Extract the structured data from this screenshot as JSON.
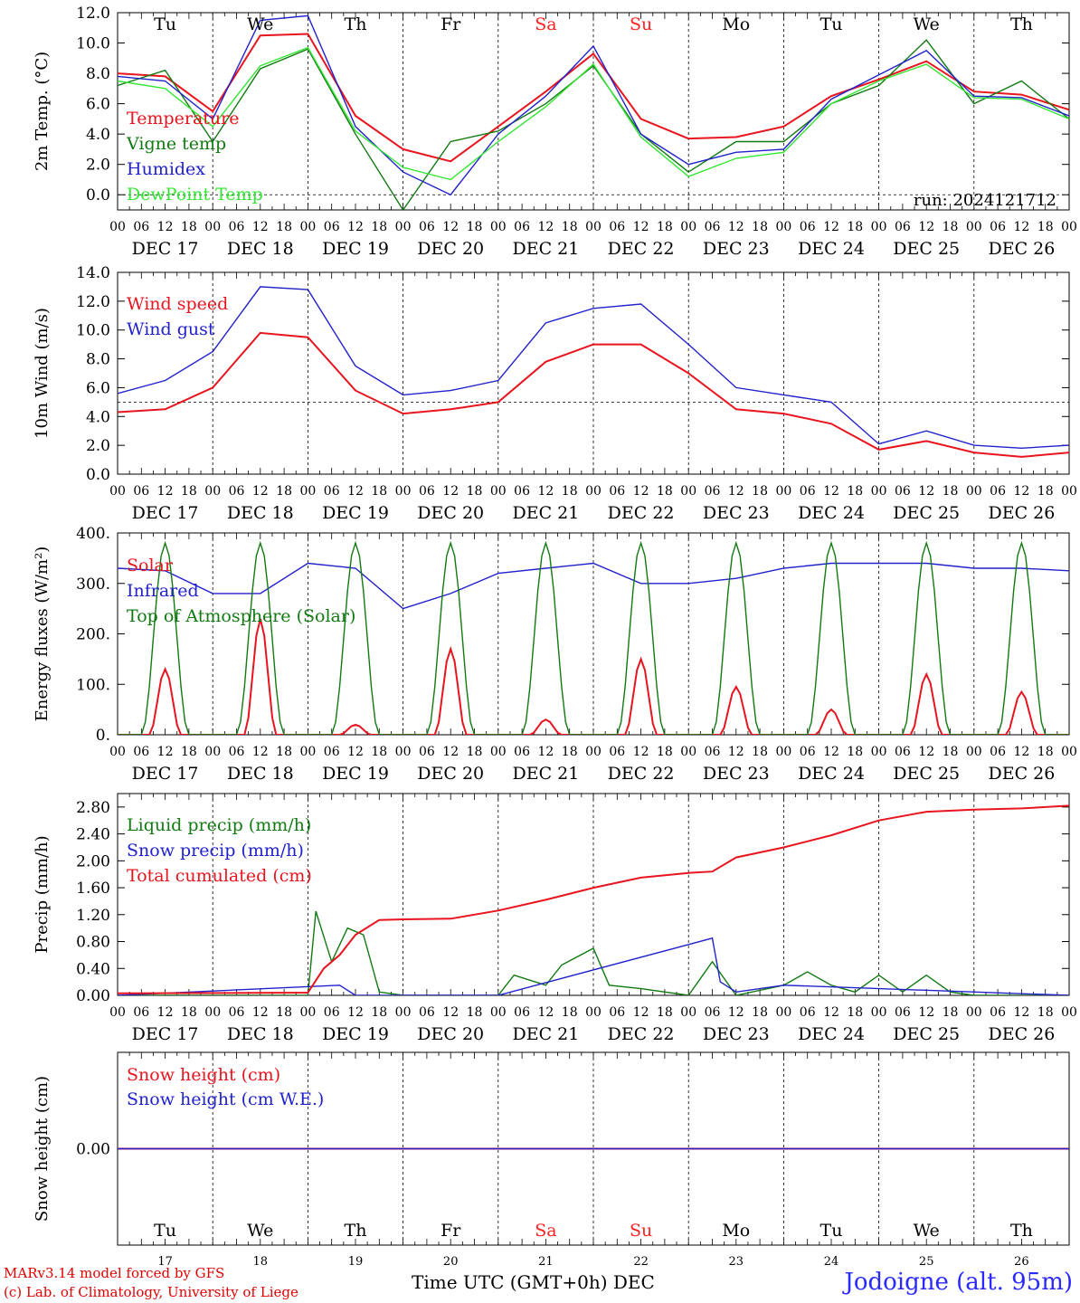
{
  "run_label": "run: 2024121712",
  "station": "Jodoigne (alt. 95m)",
  "credits": [
    "MARv3.14 model forced by GFS",
    "(c) Lab. of Climatology, University of Liege"
  ],
  "x_axis_title": "Time UTC (GMT+0h)",
  "x_axis_unit": "DEC",
  "hour_ticks": [
    "00",
    "06",
    "12",
    "18"
  ],
  "days": [
    {
      "abbr": "Tu",
      "date": "DEC 17",
      "num": "17",
      "weekend": false
    },
    {
      "abbr": "We",
      "date": "DEC 18",
      "num": "18",
      "weekend": false
    },
    {
      "abbr": "Th",
      "date": "DEC 19",
      "num": "19",
      "weekend": false
    },
    {
      "abbr": "Fr",
      "date": "DEC 20",
      "num": "20",
      "weekend": false
    },
    {
      "abbr": "Sa",
      "date": "DEC 21",
      "num": "21",
      "weekend": true
    },
    {
      "abbr": "Su",
      "date": "DEC 22",
      "num": "22",
      "weekend": true
    },
    {
      "abbr": "Mo",
      "date": "DEC 23",
      "num": "23",
      "weekend": false
    },
    {
      "abbr": "Tu",
      "date": "DEC 24",
      "num": "24",
      "weekend": false
    },
    {
      "abbr": "We",
      "date": "DEC 25",
      "num": "25",
      "weekend": false
    },
    {
      "abbr": "Th",
      "date": "DEC 26",
      "num": "26",
      "weekend": false
    }
  ],
  "colors": {
    "red": "#e8141e",
    "green": "#117a11",
    "blue": "#2222cc",
    "lightgreen": "#33e633",
    "grid": "#000000",
    "weekend": "#ff2020"
  },
  "chart_data": [
    {
      "type": "line",
      "ylabel": "2m Temp. (°C)",
      "ylim": [
        -1.0,
        12.0
      ],
      "yticks": [
        "0.0",
        "2.0",
        "4.0",
        "6.0",
        "8.0",
        "10.0",
        "12.0"
      ],
      "ref_line": 0.0,
      "x_unit": "hours since 2024-12-17 00 UTC",
      "show_days": "top",
      "series": [
        {
          "name": "Temperature",
          "color": "red",
          "x": [
            0,
            12,
            24,
            36,
            48,
            60,
            72,
            84,
            96,
            108,
            120,
            132,
            144,
            156,
            168,
            180,
            192,
            204,
            216,
            228,
            240
          ],
          "y": [
            8.0,
            7.8,
            5.5,
            10.5,
            10.6,
            5.2,
            3.0,
            2.2,
            4.5,
            6.8,
            9.3,
            5.0,
            3.7,
            3.8,
            4.5,
            6.5,
            7.6,
            8.8,
            6.8,
            6.6,
            5.6
          ]
        },
        {
          "name": "Vigne temp",
          "color": "green",
          "x": [
            0,
            12,
            24,
            36,
            48,
            60,
            72,
            84,
            96,
            108,
            120,
            132,
            144,
            156,
            168,
            180,
            192,
            204,
            216,
            228,
            240
          ],
          "y": [
            7.2,
            8.2,
            3.5,
            8.3,
            9.6,
            4.0,
            -1.0,
            3.5,
            4.2,
            6.0,
            8.5,
            4.0,
            1.5,
            3.5,
            3.5,
            6.0,
            7.2,
            10.2,
            6.0,
            7.5,
            5.0
          ]
        },
        {
          "name": "Humidex",
          "color": "blue",
          "x": [
            0,
            12,
            24,
            36,
            48,
            60,
            72,
            84,
            96,
            108,
            120,
            132,
            144,
            156,
            168,
            180,
            192,
            204,
            216,
            228,
            240
          ],
          "y": [
            7.8,
            7.5,
            5.0,
            11.5,
            11.8,
            4.5,
            1.5,
            0.0,
            4.0,
            6.5,
            9.8,
            4.0,
            2.0,
            2.8,
            3.0,
            6.3,
            7.9,
            9.5,
            6.5,
            6.4,
            5.2
          ]
        },
        {
          "name": "DewPoint Temp",
          "color": "lightgreen",
          "x": [
            0,
            12,
            24,
            36,
            48,
            60,
            72,
            84,
            96,
            108,
            120,
            132,
            144,
            156,
            168,
            180,
            192,
            204,
            216,
            228,
            240
          ],
          "y": [
            7.5,
            7.0,
            4.5,
            8.5,
            9.7,
            4.2,
            1.8,
            1.0,
            3.5,
            5.8,
            8.6,
            3.8,
            1.2,
            2.4,
            2.8,
            6.0,
            7.5,
            8.6,
            6.4,
            6.3,
            5.0
          ]
        }
      ]
    },
    {
      "type": "line",
      "ylabel": "10m Wind (m/s)",
      "ylim": [
        0.0,
        14.0
      ],
      "yticks": [
        "0.0",
        "2.0",
        "4.0",
        "6.0",
        "8.0",
        "10.0",
        "12.0",
        "14.0"
      ],
      "ref_line": 5.0,
      "show_days": "none",
      "series": [
        {
          "name": "Wind speed",
          "color": "red",
          "x": [
            0,
            12,
            24,
            36,
            48,
            60,
            72,
            84,
            96,
            108,
            120,
            132,
            144,
            156,
            168,
            180,
            192,
            204,
            216,
            228,
            240
          ],
          "y": [
            4.3,
            4.5,
            6.0,
            9.8,
            9.5,
            5.8,
            4.2,
            4.5,
            5.0,
            7.8,
            9.0,
            9.0,
            7.0,
            4.5,
            4.2,
            3.5,
            1.7,
            2.3,
            1.5,
            1.2,
            1.5
          ]
        },
        {
          "name": "Wind gust",
          "color": "blue",
          "x": [
            0,
            12,
            24,
            36,
            48,
            60,
            72,
            84,
            96,
            108,
            120,
            132,
            144,
            156,
            168,
            180,
            192,
            204,
            216,
            228,
            240
          ],
          "y": [
            5.6,
            6.5,
            8.5,
            13.0,
            12.8,
            7.5,
            5.5,
            5.8,
            6.5,
            10.5,
            11.5,
            11.8,
            9.0,
            6.0,
            5.5,
            5.0,
            2.1,
            3.0,
            2.0,
            1.8,
            2.0
          ]
        }
      ]
    },
    {
      "type": "line",
      "ylabel": "Energy fluxes (W/m²)",
      "ylim": [
        0,
        400
      ],
      "yticks": [
        "0.",
        "100.",
        "200.",
        "300.",
        "400."
      ],
      "show_days": "none",
      "series": [
        {
          "name": "Solar",
          "color": "red",
          "peaks": [
            130,
            230,
            20,
            170,
            30,
            150,
            95,
            50,
            120,
            85
          ]
        },
        {
          "name": "Infrared",
          "color": "blue",
          "x": [
            0,
            12,
            24,
            36,
            48,
            60,
            72,
            84,
            96,
            108,
            120,
            132,
            144,
            156,
            168,
            180,
            192,
            204,
            216,
            228,
            240
          ],
          "y": [
            330,
            325,
            280,
            280,
            340,
            330,
            250,
            280,
            320,
            330,
            340,
            300,
            300,
            310,
            330,
            340,
            340,
            340,
            330,
            330,
            325
          ]
        },
        {
          "name": "Top of Atmosphere (Solar)",
          "color": "green",
          "peaks": [
            380,
            380,
            380,
            380,
            380,
            380,
            380,
            380,
            380,
            380
          ]
        }
      ]
    },
    {
      "type": "line",
      "ylabel": "Precip (mm/h)",
      "ylim": [
        0,
        3.0
      ],
      "yticks": [
        "0.00",
        "0.40",
        "0.80",
        "1.20",
        "1.60",
        "2.00",
        "2.40",
        "2.80"
      ],
      "show_days": "none",
      "series": [
        {
          "name": "Liquid precip (mm/h)",
          "color": "green",
          "x": [
            0,
            48,
            50,
            54,
            58,
            62,
            66,
            72,
            96,
            100,
            108,
            112,
            120,
            124,
            132,
            144,
            150,
            156,
            168,
            174,
            180,
            186,
            192,
            198,
            204,
            210,
            216,
            240
          ],
          "y": [
            0,
            0,
            1.25,
            0.5,
            1.0,
            0.9,
            0.05,
            0,
            0,
            0.3,
            0.15,
            0.45,
            0.7,
            0.15,
            0.1,
            0,
            0.5,
            0,
            0.15,
            0.35,
            0.15,
            0.05,
            0.3,
            0.05,
            0.3,
            0.05,
            0,
            0
          ]
        },
        {
          "name": "Snow precip (mm/h)",
          "color": "blue",
          "x": [
            0,
            56,
            60,
            96,
            150,
            152,
            156,
            168,
            240
          ],
          "y": [
            0,
            0.15,
            0,
            0,
            0.85,
            0.2,
            0.05,
            0.15,
            0
          ]
        },
        {
          "name": "Total cumulated (cm)",
          "color": "red",
          "x": [
            0,
            48,
            52,
            56,
            60,
            66,
            72,
            84,
            96,
            108,
            120,
            132,
            144,
            150,
            156,
            168,
            180,
            192,
            204,
            216,
            228,
            240
          ],
          "y": [
            0.03,
            0.04,
            0.4,
            0.6,
            0.9,
            1.12,
            1.13,
            1.14,
            1.26,
            1.42,
            1.6,
            1.75,
            1.82,
            1.84,
            2.05,
            2.2,
            2.38,
            2.6,
            2.73,
            2.76,
            2.78,
            2.82
          ]
        }
      ]
    },
    {
      "type": "line",
      "ylabel": "Snow height (cm)",
      "ylim": [
        -1,
        1
      ],
      "yticks": [
        "0.00"
      ],
      "show_days": "bottom",
      "series": [
        {
          "name": "Snow height (cm)",
          "color": "red",
          "x": [
            0,
            240
          ],
          "y": [
            0,
            0
          ]
        },
        {
          "name": "Snow height (cm W.E.)",
          "color": "blue",
          "x": [
            0,
            240
          ],
          "y": [
            0,
            0
          ]
        }
      ]
    }
  ]
}
